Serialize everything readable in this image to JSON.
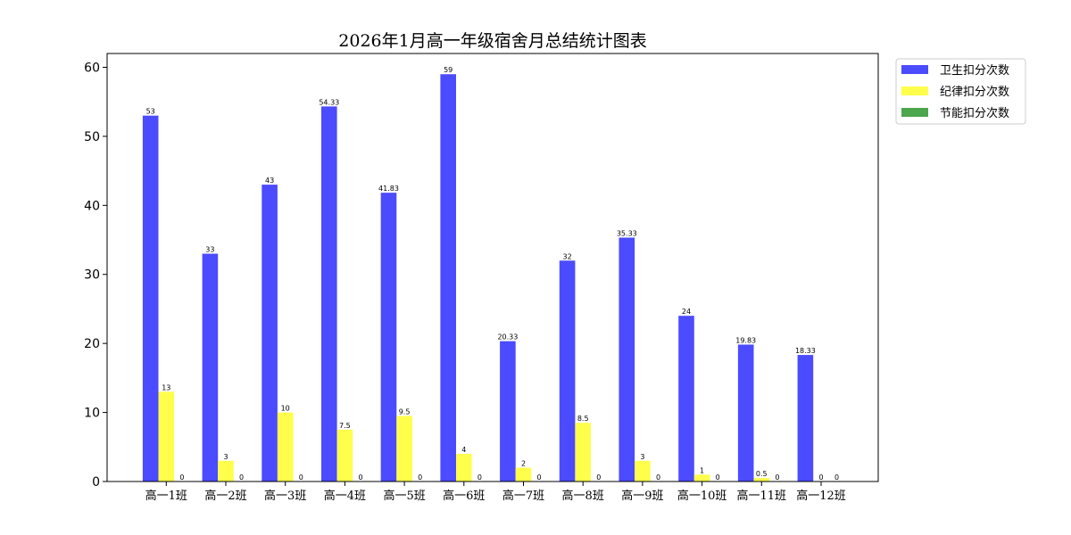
{
  "chart_data": {
    "type": "bar",
    "title": "2026年1月高一年级宿舍月总结统计图表",
    "xlabel": "",
    "ylabel": "",
    "categories": [
      "高一1班",
      "高一2班",
      "高一3班",
      "高一4班",
      "高一5班",
      "高一6班",
      "高一7班",
      "高一8班",
      "高一9班",
      "高一10班",
      "高一11班",
      "高一12班"
    ],
    "series": [
      {
        "name": "卫生扣分次数",
        "color": "#4b4bff",
        "values": [
          53,
          33,
          43,
          54.33,
          41.83,
          59,
          20.33,
          32,
          35.33,
          24,
          19.83,
          18.33
        ]
      },
      {
        "name": "纪律扣分次数",
        "color": "#ffff4b",
        "values": [
          13,
          3,
          10,
          7.5,
          9.5,
          4,
          2,
          8.5,
          3,
          1,
          0.5,
          0
        ]
      },
      {
        "name": "节能扣分次数",
        "color": "#4ca64c",
        "values": [
          0,
          0,
          0,
          0,
          0,
          0,
          0,
          0,
          0,
          0,
          0,
          0
        ]
      }
    ],
    "ylim": [
      0,
      62
    ],
    "yticks": [
      0,
      10,
      20,
      30,
      40,
      50,
      60
    ],
    "grid": false,
    "legend_position": "outside-top-right"
  }
}
